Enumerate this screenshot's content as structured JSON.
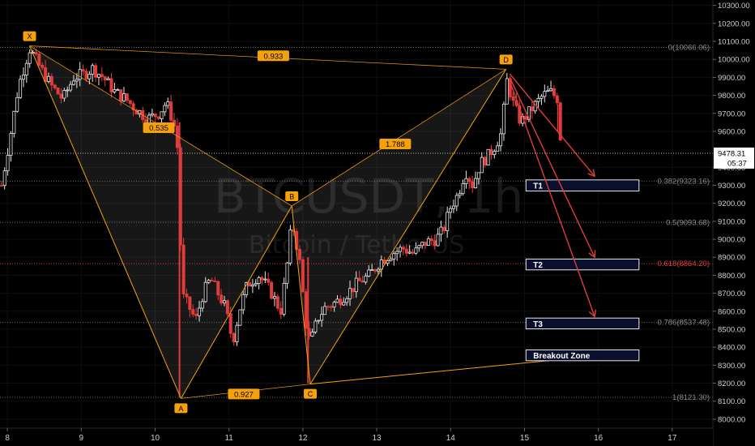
{
  "chart_data": {
    "type": "candlestick",
    "watermark": {
      "symbol": "BTCUSDT, 1h",
      "description": "Bitcoin / TetherUS"
    },
    "last_price": {
      "value": 9478.31,
      "label": "9478.31",
      "countdown": "05:37"
    },
    "y_axis": {
      "range": [
        7950,
        10330
      ],
      "ticks": [
        {
          "v": 10300,
          "label": "10300.00"
        },
        {
          "v": 10200,
          "label": "10200.00"
        },
        {
          "v": 10100,
          "label": "10100.00"
        },
        {
          "v": 10000,
          "label": "10000.00"
        },
        {
          "v": 9900,
          "label": "9900.00"
        },
        {
          "v": 9800,
          "label": "9800.00"
        },
        {
          "v": 9700,
          "label": "9700.00"
        },
        {
          "v": 9600,
          "label": "9600.00"
        },
        {
          "v": 9400,
          "label": "9400.00"
        },
        {
          "v": 9300,
          "label": "9300.00"
        },
        {
          "v": 9200,
          "label": "9200.00"
        },
        {
          "v": 9100,
          "label": "9100.00"
        },
        {
          "v": 9000,
          "label": "9000.00"
        },
        {
          "v": 8900,
          "label": "8900.00"
        },
        {
          "v": 8800,
          "label": "8800.00"
        },
        {
          "v": 8700,
          "label": "8700.00"
        },
        {
          "v": 8600,
          "label": "8600.00"
        },
        {
          "v": 8500,
          "label": "8500.00"
        },
        {
          "v": 8400,
          "label": "8400.00"
        },
        {
          "v": 8300,
          "label": "8300.00"
        },
        {
          "v": 8200,
          "label": "8200.00"
        },
        {
          "v": 8100,
          "label": "8100.00"
        },
        {
          "v": 8000,
          "label": "8000.00"
        }
      ]
    },
    "x_axis": {
      "range": [
        7.9,
        17.55
      ],
      "ticks": [
        {
          "v": 8,
          "label": "8"
        },
        {
          "v": 9,
          "label": "9"
        },
        {
          "v": 10,
          "label": "10"
        },
        {
          "v": 11,
          "label": "11"
        },
        {
          "v": 12,
          "label": "12"
        },
        {
          "v": 13,
          "label": "13"
        },
        {
          "v": 14,
          "label": "14"
        },
        {
          "v": 15,
          "label": "15"
        },
        {
          "v": 16,
          "label": "16"
        },
        {
          "v": 17,
          "label": "17"
        }
      ]
    },
    "pattern": {
      "points": [
        {
          "name": "X",
          "x": 8.3,
          "y": 10075
        },
        {
          "name": "A",
          "x": 10.35,
          "y": 8115
        },
        {
          "name": "B",
          "x": 11.85,
          "y": 9185
        },
        {
          "name": "C",
          "x": 12.1,
          "y": 8195
        },
        {
          "name": "D",
          "x": 14.75,
          "y": 9945
        }
      ],
      "ratios": [
        {
          "label": "0.933",
          "x": 11.6,
          "y": 10020
        },
        {
          "label": "0.535",
          "x": 10.05,
          "y": 9620
        },
        {
          "label": "1.788",
          "x": 13.25,
          "y": 9530
        },
        {
          "label": "0.927",
          "x": 11.2,
          "y": 8140
        }
      ]
    },
    "fib_levels": [
      {
        "label": "0(10066.06)",
        "value": 10066.06
      },
      {
        "label": "0.382(9323.16)",
        "value": 9323.16
      },
      {
        "label": "0.5(9093.68)",
        "value": 9093.68
      },
      {
        "label": "0.618(8864.20)",
        "value": 8864.2,
        "color": "#d84040"
      },
      {
        "label": "0.786(8537.48)",
        "value": 8537.48
      },
      {
        "label": "1(8121.30)",
        "value": 8121.3
      }
    ],
    "target_boxes": [
      {
        "label": "T1",
        "x0": 15.02,
        "x1": 16.55,
        "y0": 9330,
        "y1": 9268
      },
      {
        "label": "T2",
        "x0": 15.02,
        "x1": 16.55,
        "y0": 8890,
        "y1": 8830
      },
      {
        "label": "T3",
        "x0": 15.02,
        "x1": 16.55,
        "y0": 8562,
        "y1": 8502
      },
      {
        "label": "Breakout Zone",
        "x0": 15.02,
        "x1": 16.55,
        "y0": 8385,
        "y1": 8325
      }
    ],
    "trend_line": {
      "from": {
        "x": 12.1,
        "y": 8195
      },
      "to": {
        "x": 16.55,
        "y": 8375
      }
    },
    "arrows": [
      {
        "from": {
          "x": 14.8,
          "y": 9920
        },
        "to": {
          "x": 15.95,
          "y": 9350
        }
      },
      {
        "from": {
          "x": 14.8,
          "y": 9900
        },
        "to": {
          "x": 15.95,
          "y": 8900
        }
      },
      {
        "from": {
          "x": 14.8,
          "y": 9880
        },
        "to": {
          "x": 15.95,
          "y": 8570
        }
      }
    ],
    "price_path": [
      [
        7.92,
        9300
      ],
      [
        8.05,
        9600
      ],
      [
        8.15,
        9850
      ],
      [
        8.3,
        10060
      ],
      [
        8.45,
        9950
      ],
      [
        8.6,
        9850
      ],
      [
        8.75,
        9780
      ],
      [
        8.9,
        9900
      ],
      [
        9.05,
        9920
      ],
      [
        9.15,
        9950
      ],
      [
        9.3,
        9900
      ],
      [
        9.45,
        9820
      ],
      [
        9.6,
        9780
      ],
      [
        9.75,
        9720
      ],
      [
        9.9,
        9670
      ],
      [
        10.05,
        9700
      ],
      [
        10.15,
        9760
      ],
      [
        10.25,
        9650
      ],
      [
        10.33,
        9430
      ],
      [
        10.35,
        8700
      ],
      [
        10.45,
        8630
      ],
      [
        10.55,
        8550
      ],
      [
        10.65,
        8700
      ],
      [
        10.75,
        8780
      ],
      [
        10.85,
        8700
      ],
      [
        10.95,
        8620
      ],
      [
        11.05,
        8430
      ],
      [
        11.15,
        8620
      ],
      [
        11.25,
        8750
      ],
      [
        11.4,
        8800
      ],
      [
        11.55,
        8720
      ],
      [
        11.7,
        8600
      ],
      [
        11.8,
        8900
      ],
      [
        11.85,
        9100
      ],
      [
        11.95,
        8900
      ],
      [
        12.05,
        8500
      ],
      [
        12.1,
        8420
      ],
      [
        12.2,
        8560
      ],
      [
        12.3,
        8620
      ],
      [
        12.45,
        8650
      ],
      [
        12.6,
        8700
      ],
      [
        12.75,
        8760
      ],
      [
        12.9,
        8800
      ],
      [
        13.05,
        8880
      ],
      [
        13.2,
        8920
      ],
      [
        13.35,
        8950
      ],
      [
        13.5,
        8920
      ],
      [
        13.65,
        8980
      ],
      [
        13.8,
        9000
      ],
      [
        13.9,
        9050
      ],
      [
        14.0,
        9180
      ],
      [
        14.1,
        9250
      ],
      [
        14.2,
        9380
      ],
      [
        14.3,
        9300
      ],
      [
        14.4,
        9420
      ],
      [
        14.5,
        9460
      ],
      [
        14.6,
        9520
      ],
      [
        14.7,
        9600
      ],
      [
        14.75,
        9900
      ],
      [
        14.85,
        9750
      ],
      [
        14.95,
        9650
      ],
      [
        15.05,
        9700
      ],
      [
        15.15,
        9750
      ],
      [
        15.25,
        9800
      ],
      [
        15.35,
        9820
      ],
      [
        15.45,
        9780
      ],
      [
        15.5,
        9480
      ]
    ]
  }
}
